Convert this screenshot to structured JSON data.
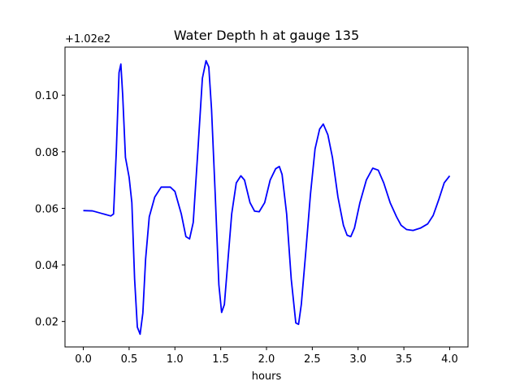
{
  "chart_data": {
    "type": "line",
    "title": "Water Depth h at gauge 135",
    "xlabel": "hours",
    "ylabel": "",
    "offset_label": "+1.02e2",
    "xlim": [
      -0.2,
      4.2
    ],
    "ylim": [
      0.011,
      0.117
    ],
    "x_ticks": [
      0.0,
      0.5,
      1.0,
      1.5,
      2.0,
      2.5,
      3.0,
      3.5,
      4.0
    ],
    "x_tick_labels": [
      "0.0",
      "0.5",
      "1.0",
      "1.5",
      "2.0",
      "2.5",
      "3.0",
      "3.5",
      "4.0"
    ],
    "y_ticks": [
      0.02,
      0.04,
      0.06,
      0.08,
      0.1
    ],
    "y_tick_labels": [
      "0.02",
      "0.04",
      "0.06",
      "0.08",
      "0.10"
    ],
    "grid": false,
    "legend": "none",
    "series": [
      {
        "color": "#0000ff",
        "points": [
          [
            0.0,
            0.0592
          ],
          [
            0.1,
            0.0591
          ],
          [
            0.2,
            0.0582
          ],
          [
            0.3,
            0.0573
          ],
          [
            0.33,
            0.058
          ],
          [
            0.36,
            0.08
          ],
          [
            0.39,
            0.108
          ],
          [
            0.41,
            0.111
          ],
          [
            0.43,
            0.1
          ],
          [
            0.46,
            0.078
          ],
          [
            0.5,
            0.071
          ],
          [
            0.53,
            0.062
          ],
          [
            0.56,
            0.035
          ],
          [
            0.59,
            0.018
          ],
          [
            0.62,
            0.0155
          ],
          [
            0.65,
            0.023
          ],
          [
            0.68,
            0.042
          ],
          [
            0.72,
            0.057
          ],
          [
            0.78,
            0.064
          ],
          [
            0.85,
            0.0675
          ],
          [
            0.95,
            0.0675
          ],
          [
            1.0,
            0.066
          ],
          [
            1.07,
            0.058
          ],
          [
            1.12,
            0.05
          ],
          [
            1.16,
            0.0492
          ],
          [
            1.2,
            0.055
          ],
          [
            1.25,
            0.08
          ],
          [
            1.3,
            0.106
          ],
          [
            1.34,
            0.1122
          ],
          [
            1.37,
            0.11
          ],
          [
            1.4,
            0.095
          ],
          [
            1.44,
            0.065
          ],
          [
            1.48,
            0.033
          ],
          [
            1.51,
            0.0232
          ],
          [
            1.54,
            0.026
          ],
          [
            1.58,
            0.042
          ],
          [
            1.62,
            0.058
          ],
          [
            1.67,
            0.069
          ],
          [
            1.72,
            0.0715
          ],
          [
            1.76,
            0.07
          ],
          [
            1.82,
            0.062
          ],
          [
            1.87,
            0.059
          ],
          [
            1.92,
            0.0588
          ],
          [
            1.98,
            0.062
          ],
          [
            2.04,
            0.07
          ],
          [
            2.1,
            0.074
          ],
          [
            2.14,
            0.0748
          ],
          [
            2.17,
            0.072
          ],
          [
            2.22,
            0.058
          ],
          [
            2.27,
            0.035
          ],
          [
            2.32,
            0.0195
          ],
          [
            2.35,
            0.019
          ],
          [
            2.38,
            0.026
          ],
          [
            2.43,
            0.045
          ],
          [
            2.48,
            0.065
          ],
          [
            2.53,
            0.081
          ],
          [
            2.58,
            0.088
          ],
          [
            2.62,
            0.0898
          ],
          [
            2.67,
            0.086
          ],
          [
            2.72,
            0.078
          ],
          [
            2.78,
            0.064
          ],
          [
            2.84,
            0.054
          ],
          [
            2.88,
            0.0505
          ],
          [
            2.92,
            0.05
          ],
          [
            2.96,
            0.053
          ],
          [
            3.02,
            0.062
          ],
          [
            3.09,
            0.07
          ],
          [
            3.16,
            0.0742
          ],
          [
            3.22,
            0.0735
          ],
          [
            3.28,
            0.069
          ],
          [
            3.35,
            0.062
          ],
          [
            3.42,
            0.057
          ],
          [
            3.47,
            0.054
          ],
          [
            3.53,
            0.0525
          ],
          [
            3.6,
            0.0522
          ],
          [
            3.68,
            0.053
          ],
          [
            3.76,
            0.0545
          ],
          [
            3.82,
            0.0575
          ],
          [
            3.88,
            0.063
          ],
          [
            3.94,
            0.069
          ],
          [
            4.0,
            0.0715
          ]
        ]
      }
    ]
  }
}
